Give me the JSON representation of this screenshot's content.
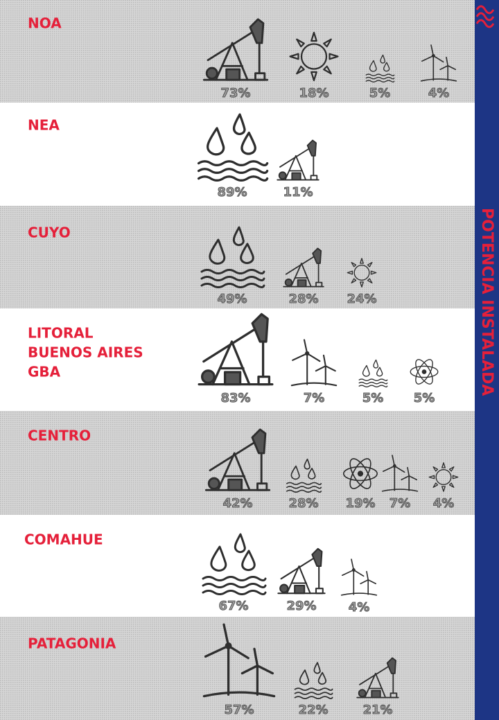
{
  "side_title": "POTENCIA INSTALADA",
  "regions": [
    {
      "name": [
        "NOA"
      ],
      "shares": [
        "73%",
        "18%",
        "5%",
        "4%"
      ]
    },
    {
      "name": [
        "NEA"
      ],
      "shares": [
        "89%",
        "11%"
      ]
    },
    {
      "name": [
        "CUYO"
      ],
      "shares": [
        "49%",
        "28%",
        "24%"
      ]
    },
    {
      "name": [
        "LITORAL",
        "BUENOS AIRES",
        "GBA"
      ],
      "shares": [
        "83%",
        "7%",
        "5%",
        "5%"
      ]
    },
    {
      "name": [
        "CENTRO"
      ],
      "shares": [
        "42%",
        "28%",
        "19%",
        "7%",
        "4%"
      ]
    },
    {
      "name": [
        "COMAHUE"
      ],
      "shares": [
        "67%",
        "29%",
        "4%"
      ]
    },
    {
      "name": [
        "PATAGONIA"
      ],
      "shares": [
        "57%",
        "22%",
        "21%"
      ]
    }
  ]
}
